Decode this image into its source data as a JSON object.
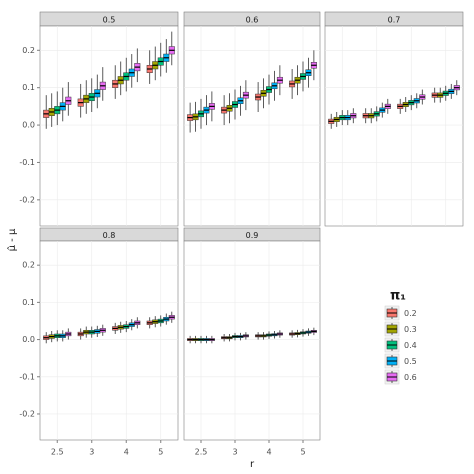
{
  "chart_data": {
    "type": "box",
    "ylabel": "μ̂ - μ",
    "xlabel": "r",
    "legend_title": "π₁",
    "categories": [
      "2.5",
      "3",
      "4",
      "5"
    ],
    "ylim": [
      -0.27,
      0.265
    ],
    "yticks": [
      -0.2,
      -0.1,
      {
        "value": 0,
        "label": "0.0"
      },
      0.1,
      0.2
    ],
    "grid": true,
    "series": [
      {
        "name": "0.2",
        "color": "#F8766D"
      },
      {
        "name": "0.3",
        "color": "#A3A500"
      },
      {
        "name": "0.4",
        "color": "#00BF7D"
      },
      {
        "name": "0.5",
        "color": "#00B0F6"
      },
      {
        "name": "0.6",
        "color": "#E76BF3"
      }
    ],
    "facets": [
      {
        "title": "0.5",
        "values": [
          [
            [
              -0.01,
              0.02,
              0.03,
              0.04,
              0.08
            ],
            [
              0.02,
              0.05,
              0.06,
              0.07,
              0.11
            ],
            [
              0.07,
              0.1,
              0.11,
              0.12,
              0.16
            ],
            [
              0.11,
              0.14,
              0.15,
              0.16,
              0.2
            ]
          ],
          [
            [
              -0.005,
              0.025,
              0.035,
              0.045,
              0.085
            ],
            [
              0.03,
              0.06,
              0.07,
              0.08,
              0.12
            ],
            [
              0.08,
              0.11,
              0.12,
              0.13,
              0.17
            ],
            [
              0.12,
              0.15,
              0.16,
              0.17,
              0.21
            ]
          ],
          [
            [
              0,
              0.03,
              0.04,
              0.05,
              0.09
            ],
            [
              0.035,
              0.065,
              0.075,
              0.085,
              0.125
            ],
            [
              0.09,
              0.12,
              0.13,
              0.14,
              0.18
            ],
            [
              0.13,
              0.16,
              0.17,
              0.18,
              0.22
            ]
          ],
          [
            [
              0.01,
              0.04,
              0.05,
              0.06,
              0.1
            ],
            [
              0.045,
              0.075,
              0.085,
              0.095,
              0.135
            ],
            [
              0.1,
              0.13,
              0.14,
              0.15,
              0.19
            ],
            [
              0.14,
              0.17,
              0.18,
              0.19,
              0.23
            ]
          ],
          [
            [
              0.025,
              0.055,
              0.065,
              0.075,
              0.115
            ],
            [
              0.065,
              0.095,
              0.105,
              0.115,
              0.155
            ],
            [
              0.115,
              0.145,
              0.155,
              0.165,
              0.205
            ],
            [
              0.16,
              0.19,
              0.2,
              0.21,
              0.25
            ]
          ]
        ]
      },
      {
        "title": "0.6",
        "values": [
          [
            [
              -0.02,
              0.012,
              0.02,
              0.028,
              0.06
            ],
            [
              0,
              0.032,
              0.04,
              0.048,
              0.08
            ],
            [
              0.035,
              0.067,
              0.075,
              0.083,
              0.115
            ],
            [
              0.07,
              0.102,
              0.11,
              0.118,
              0.15
            ]
          ],
          [
            [
              -0.018,
              0.014,
              0.022,
              0.03,
              0.062
            ],
            [
              0.005,
              0.037,
              0.045,
              0.053,
              0.085
            ],
            [
              0.045,
              0.077,
              0.085,
              0.093,
              0.125
            ],
            [
              0.08,
              0.112,
              0.12,
              0.128,
              0.16
            ]
          ],
          [
            [
              -0.01,
              0.022,
              0.03,
              0.038,
              0.07
            ],
            [
              0.015,
              0.047,
              0.055,
              0.063,
              0.095
            ],
            [
              0.055,
              0.087,
              0.095,
              0.103,
              0.135
            ],
            [
              0.09,
              0.122,
              0.13,
              0.138,
              0.17
            ]
          ],
          [
            [
              0,
              0.032,
              0.04,
              0.048,
              0.08
            ],
            [
              0.025,
              0.057,
              0.065,
              0.073,
              0.105
            ],
            [
              0.065,
              0.097,
              0.105,
              0.113,
              0.145
            ],
            [
              0.1,
              0.132,
              0.14,
              0.148,
              0.18
            ]
          ],
          [
            [
              0.01,
              0.042,
              0.05,
              0.058,
              0.09
            ],
            [
              0.04,
              0.072,
              0.08,
              0.088,
              0.12
            ],
            [
              0.08,
              0.112,
              0.12,
              0.128,
              0.16
            ],
            [
              0.12,
              0.152,
              0.16,
              0.168,
              0.2
            ]
          ]
        ]
      },
      {
        "title": "0.7",
        "values": [
          [
            [
              -0.01,
              0.004,
              0.01,
              0.016,
              0.03
            ],
            [
              0.005,
              0.019,
              0.025,
              0.031,
              0.045
            ],
            [
              0.03,
              0.044,
              0.05,
              0.056,
              0.07
            ],
            [
              0.06,
              0.074,
              0.08,
              0.086,
              0.1
            ]
          ],
          [
            [
              -0.005,
              0.009,
              0.015,
              0.021,
              0.035
            ],
            [
              0.005,
              0.019,
              0.025,
              0.031,
              0.045
            ],
            [
              0.035,
              0.049,
              0.055,
              0.061,
              0.075
            ],
            [
              0.06,
              0.074,
              0.08,
              0.086,
              0.1
            ]
          ],
          [
            [
              0,
              0.014,
              0.02,
              0.026,
              0.04
            ],
            [
              0.01,
              0.024,
              0.03,
              0.036,
              0.05
            ],
            [
              0.04,
              0.054,
              0.06,
              0.066,
              0.08
            ],
            [
              0.065,
              0.079,
              0.085,
              0.091,
              0.105
            ]
          ],
          [
            [
              0,
              0.014,
              0.02,
              0.026,
              0.04
            ],
            [
              0.02,
              0.034,
              0.04,
              0.046,
              0.06
            ],
            [
              0.045,
              0.059,
              0.065,
              0.071,
              0.085
            ],
            [
              0.07,
              0.084,
              0.09,
              0.096,
              0.11
            ]
          ],
          [
            [
              0.005,
              0.019,
              0.025,
              0.031,
              0.045
            ],
            [
              0.03,
              0.044,
              0.05,
              0.056,
              0.07
            ],
            [
              0.055,
              0.069,
              0.075,
              0.081,
              0.095
            ],
            [
              0.08,
              0.094,
              0.1,
              0.106,
              0.12
            ]
          ]
        ]
      },
      {
        "title": "0.8",
        "values": [
          [
            [
              -0.01,
              0,
              0.005,
              0.01,
              0.02
            ],
            [
              0,
              0.01,
              0.015,
              0.02,
              0.03
            ],
            [
              0.015,
              0.025,
              0.03,
              0.035,
              0.045
            ],
            [
              0.03,
              0.04,
              0.045,
              0.05,
              0.06
            ]
          ],
          [
            [
              -0.007,
              0.003,
              0.008,
              0.013,
              0.023
            ],
            [
              0.005,
              0.015,
              0.02,
              0.025,
              0.035
            ],
            [
              0.018,
              0.028,
              0.033,
              0.038,
              0.048
            ],
            [
              0.033,
              0.043,
              0.048,
              0.053,
              0.063
            ]
          ],
          [
            [
              -0.005,
              0.005,
              0.01,
              0.015,
              0.025
            ],
            [
              0.005,
              0.015,
              0.02,
              0.025,
              0.035
            ],
            [
              0.02,
              0.03,
              0.035,
              0.04,
              0.05
            ],
            [
              0.035,
              0.045,
              0.05,
              0.055,
              0.065
            ]
          ],
          [
            [
              -0.005,
              0.005,
              0.01,
              0.015,
              0.025
            ],
            [
              0.007,
              0.017,
              0.022,
              0.027,
              0.037
            ],
            [
              0.025,
              0.035,
              0.04,
              0.045,
              0.055
            ],
            [
              0.04,
              0.05,
              0.055,
              0.06,
              0.07
            ]
          ],
          [
            [
              0,
              0.01,
              0.015,
              0.02,
              0.03
            ],
            [
              0.01,
              0.02,
              0.025,
              0.03,
              0.04
            ],
            [
              0.03,
              0.04,
              0.045,
              0.05,
              0.06
            ],
            [
              0.045,
              0.055,
              0.06,
              0.065,
              0.075
            ]
          ]
        ]
      },
      {
        "title": "0.9",
        "values": [
          [
            [
              -0.01,
              -0.003,
              0,
              0.003,
              0.01
            ],
            [
              -0.005,
              0.002,
              0.005,
              0.008,
              0.015
            ],
            [
              0,
              0.007,
              0.01,
              0.013,
              0.02
            ],
            [
              0.005,
              0.012,
              0.015,
              0.018,
              0.025
            ]
          ],
          [
            [
              -0.01,
              -0.003,
              0,
              0.003,
              0.01
            ],
            [
              -0.005,
              0.002,
              0.005,
              0.008,
              0.015
            ],
            [
              0,
              0.007,
              0.01,
              0.013,
              0.02
            ],
            [
              0.006,
              0.013,
              0.016,
              0.019,
              0.026
            ]
          ],
          [
            [
              -0.01,
              -0.003,
              0,
              0.003,
              0.01
            ],
            [
              -0.002,
              0.005,
              0.008,
              0.011,
              0.018
            ],
            [
              0.002,
              0.009,
              0.012,
              0.015,
              0.022
            ],
            [
              0.008,
              0.015,
              0.018,
              0.021,
              0.028
            ]
          ],
          [
            [
              -0.01,
              -0.003,
              0,
              0.003,
              0.01
            ],
            [
              -0.002,
              0.005,
              0.008,
              0.011,
              0.018
            ],
            [
              0.003,
              0.01,
              0.013,
              0.016,
              0.023
            ],
            [
              0.01,
              0.017,
              0.02,
              0.023,
              0.03
            ]
          ],
          [
            [
              -0.01,
              -0.003,
              0,
              0.003,
              0.01
            ],
            [
              0,
              0.007,
              0.01,
              0.013,
              0.02
            ],
            [
              0.005,
              0.012,
              0.015,
              0.018,
              0.025
            ],
            [
              0.012,
              0.019,
              0.022,
              0.025,
              0.032
            ]
          ]
        ]
      }
    ]
  }
}
